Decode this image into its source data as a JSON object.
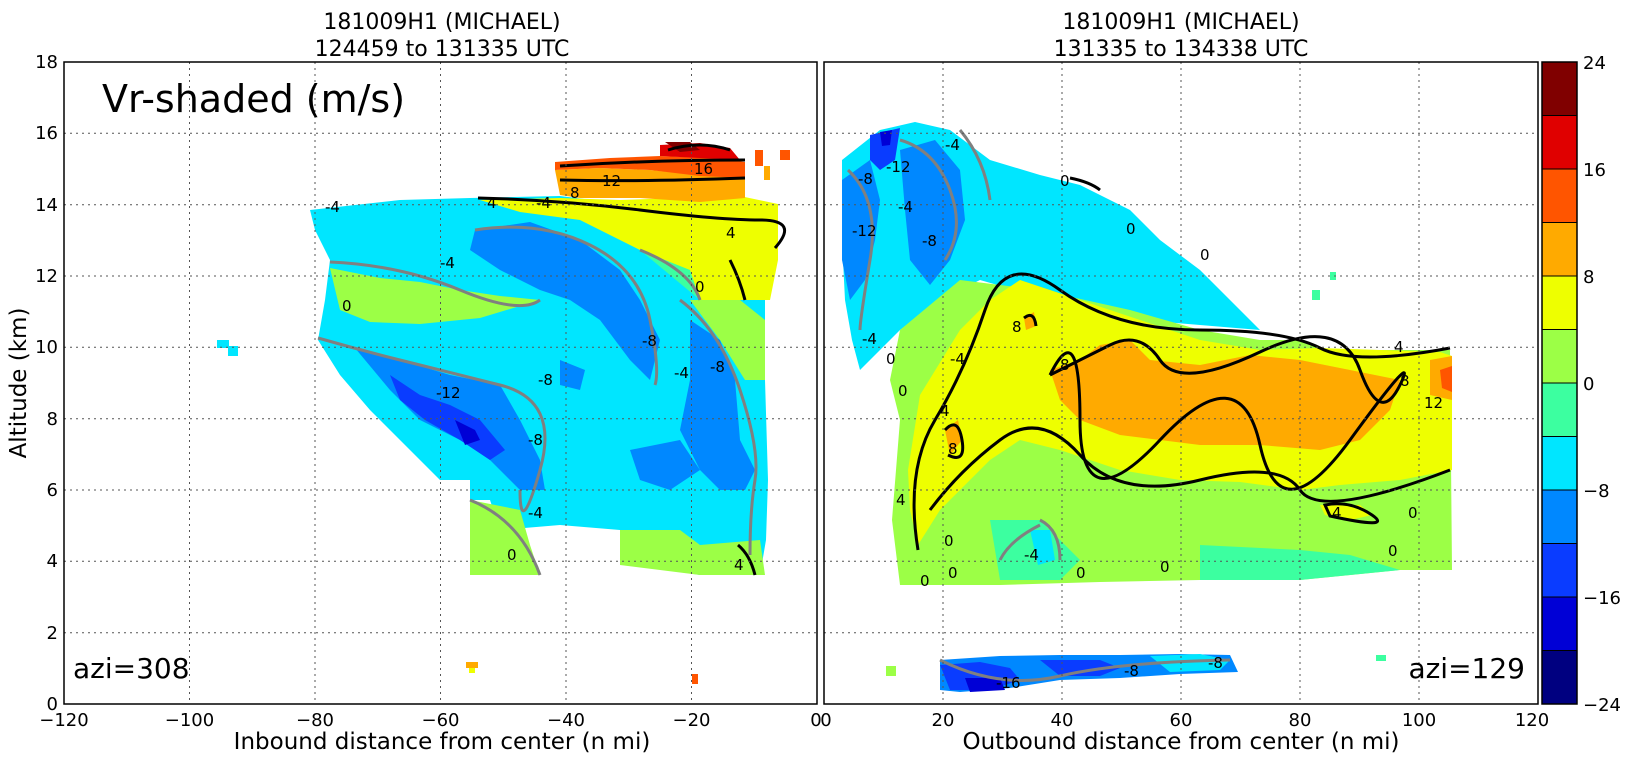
{
  "chart_data": {
    "type": "filled contour",
    "variable_label": "Vr-shaded (m/s)",
    "colorbar": {
      "levels": [
        -24,
        -20,
        -16,
        -12,
        -8,
        -4,
        0,
        4,
        8,
        12,
        16,
        20,
        24
      ],
      "tick_labels": [
        "24",
        "16",
        "8",
        "0",
        "−8",
        "−16",
        "−24"
      ],
      "colors": [
        "#000080",
        "#0000d6",
        "#0a3cff",
        "#0088ff",
        "#00e6ff",
        "#3cffa0",
        "#9cff46",
        "#eeff00",
        "#ffaa00",
        "#ff5500",
        "#e00000",
        "#800000"
      ]
    },
    "panels": [
      {
        "title_line1": "181009H1 (MICHAEL)",
        "title_line2": "124459 to 131335 UTC",
        "xlabel": "Inbound distance from center (n mi)",
        "ylabel": "Altitude (km)",
        "xlim": [
          -120,
          0
        ],
        "ylim": [
          0,
          18
        ],
        "xtick_labels": [
          "−120",
          "−100",
          "−80",
          "−60",
          "−40",
          "−20",
          "0"
        ],
        "ytick_labels": [
          "0",
          "2",
          "4",
          "6",
          "8",
          "10",
          "12",
          "14",
          "16",
          "18"
        ],
        "azimuth_label": "azi=308",
        "contour_labels": [
          "-4",
          "-4",
          "-4",
          "0",
          "-12",
          "-8",
          "-8",
          "-8",
          "-8",
          "-4",
          "0",
          "0",
          "-4",
          "4",
          "4",
          "8",
          "12",
          "16",
          "4"
        ]
      },
      {
        "title_line1": "181009H1 (MICHAEL)",
        "title_line2": "131335 to 134338 UTC",
        "xlabel": "Outbound distance from center (n mi)",
        "xlim": [
          0,
          120
        ],
        "ylim": [
          0,
          18
        ],
        "xtick_labels": [
          "0",
          "20",
          "40",
          "60",
          "80",
          "100",
          "120"
        ],
        "azimuth_label": "azi=129",
        "contour_labels": [
          "-12",
          "-8",
          "-12",
          "-4",
          "-4",
          "-8",
          "0",
          "0",
          "0",
          "-4",
          "0",
          "0",
          "-4",
          "4",
          "8",
          "8",
          "8",
          "4",
          "8",
          "12",
          "4",
          "0",
          "0",
          "0",
          "0",
          "0",
          "4",
          "0",
          "0",
          "-4",
          "-16",
          "-8",
          "-8"
        ]
      }
    ]
  }
}
